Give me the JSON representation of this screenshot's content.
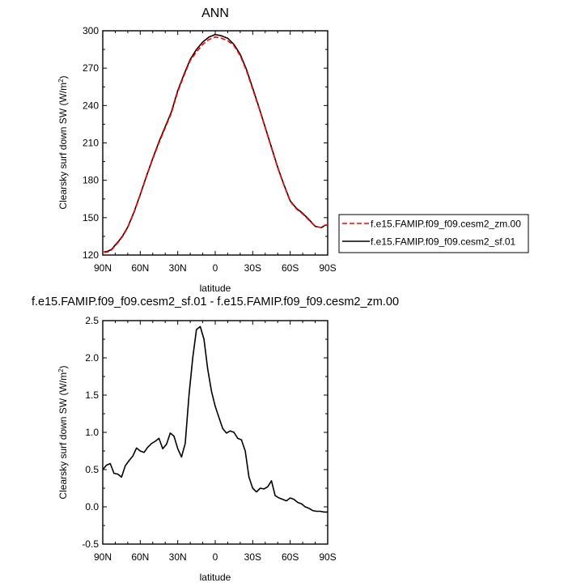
{
  "chart_data": [
    {
      "type": "line",
      "title": "ANN",
      "xlabel": "latitude",
      "ylabel": "Clearsky surf down SW (W/m",
      "ylabel_sup": "2",
      "ylabel_close": ")",
      "x_ticks": [
        {
          "lat": 90,
          "label": "90N"
        },
        {
          "lat": 60,
          "label": "60N"
        },
        {
          "lat": 30,
          "label": "30N"
        },
        {
          "lat": 0,
          "label": "0"
        },
        {
          "lat": -30,
          "label": "30S"
        },
        {
          "lat": -60,
          "label": "60S"
        },
        {
          "lat": -90,
          "label": "90S"
        }
      ],
      "xlim": [
        90,
        -90
      ],
      "ylim": [
        120,
        300
      ],
      "y_ticks": [
        "120",
        "150",
        "180",
        "210",
        "240",
        "270",
        "300"
      ],
      "legend_placement": "right",
      "series": [
        {
          "name": "f.e15.FAMIP.f09_f09.cesm2_zm.00",
          "color": "#ff0000",
          "dash": "dashed",
          "lat": [
            89,
            86,
            83,
            80,
            77,
            74,
            70,
            65,
            60,
            55,
            50,
            45,
            40,
            35,
            30,
            25,
            20,
            15,
            10,
            5,
            0,
            -5,
            -10,
            -15,
            -20,
            -25,
            -30,
            -35,
            -40,
            -45,
            -50,
            -55,
            -60,
            -65,
            -70,
            -75,
            -80,
            -85,
            -88,
            -90
          ],
          "values": [
            122,
            122.5,
            124,
            127.5,
            131,
            135,
            142,
            154,
            168,
            183,
            197,
            210,
            222,
            234,
            251,
            264,
            276,
            283,
            289,
            293,
            295,
            294,
            292,
            288,
            280,
            268,
            253,
            238,
            222,
            206,
            190,
            176,
            163,
            157,
            153,
            148,
            143,
            142,
            144,
            144
          ]
        },
        {
          "name": "f.e15.FAMIP.f09_f09.cesm2_sf.01",
          "color": "#000000",
          "dash": "solid",
          "lat": [
            89,
            86,
            83,
            80,
            77,
            74,
            70,
            65,
            60,
            55,
            50,
            45,
            40,
            35,
            30,
            25,
            20,
            15,
            10,
            5,
            0,
            -5,
            -10,
            -15,
            -20,
            -25,
            -30,
            -35,
            -40,
            -45,
            -50,
            -55,
            -60,
            -65,
            -70,
            -75,
            -80,
            -85,
            -88,
            -90
          ],
          "values": [
            122.5,
            123,
            124.5,
            128,
            131.5,
            135.5,
            142.5,
            154.5,
            168.5,
            183.5,
            197.5,
            211,
            223,
            235,
            252,
            265,
            277,
            285,
            291,
            295,
            297,
            296,
            294,
            289,
            281,
            269,
            254,
            238.5,
            222.5,
            206.5,
            190.5,
            176.5,
            163.5,
            157.5,
            153.5,
            148.5,
            143,
            142,
            144,
            144
          ]
        }
      ]
    },
    {
      "type": "line",
      "title": "f.e15.FAMIP.f09_f09.cesm2_sf.01 - f.e15.FAMIP.f09_f09.cesm2_zm.00",
      "xlabel": "latitude",
      "ylabel": "Clearsky surf down SW (W/m",
      "ylabel_sup": "2",
      "ylabel_close": ")",
      "x_ticks": [
        {
          "lat": 90,
          "label": "90N"
        },
        {
          "lat": 60,
          "label": "60N"
        },
        {
          "lat": 30,
          "label": "30N"
        },
        {
          "lat": 0,
          "label": "0"
        },
        {
          "lat": -30,
          "label": "30S"
        },
        {
          "lat": -60,
          "label": "60S"
        },
        {
          "lat": -90,
          "label": "90S"
        }
      ],
      "xlim": [
        90,
        -90
      ],
      "ylim": [
        -0.5,
        2.5
      ],
      "y_ticks": [
        "-0.5",
        "0.0",
        "0.5",
        "1.0",
        "1.5",
        "2.0",
        "2.5"
      ],
      "series": [
        {
          "name": "",
          "color": "#000000",
          "dash": "solid",
          "lat": [
            90,
            87,
            84,
            81,
            78,
            75,
            72,
            69,
            66,
            63,
            60,
            57,
            54,
            51,
            48,
            45,
            42,
            39,
            36,
            33,
            30,
            27,
            24,
            21,
            18,
            15,
            12,
            9,
            6,
            3,
            0,
            -3,
            -6,
            -9,
            -12,
            -15,
            -18,
            -21,
            -24,
            -27,
            -30,
            -33,
            -36,
            -39,
            -42,
            -45,
            -48,
            -51,
            -54,
            -57,
            -60,
            -63,
            -66,
            -69,
            -72,
            -75,
            -78,
            -81,
            -84,
            -87,
            -90
          ],
          "values": [
            0.5,
            0.56,
            0.58,
            0.45,
            0.44,
            0.4,
            0.55,
            0.62,
            0.68,
            0.79,
            0.75,
            0.73,
            0.8,
            0.85,
            0.88,
            0.92,
            0.78,
            0.84,
            0.99,
            0.95,
            0.78,
            0.67,
            0.85,
            1.5,
            2.0,
            2.38,
            2.42,
            2.25,
            1.85,
            1.55,
            1.35,
            1.2,
            1.05,
            0.99,
            1.02,
            1.0,
            0.92,
            0.9,
            0.75,
            0.4,
            0.25,
            0.2,
            0.25,
            0.24,
            0.27,
            0.35,
            0.15,
            0.12,
            0.1,
            0.08,
            0.12,
            0.1,
            0.06,
            0.04,
            0.0,
            -0.02,
            -0.05,
            -0.06,
            -0.06,
            -0.07,
            -0.07
          ]
        }
      ]
    }
  ]
}
